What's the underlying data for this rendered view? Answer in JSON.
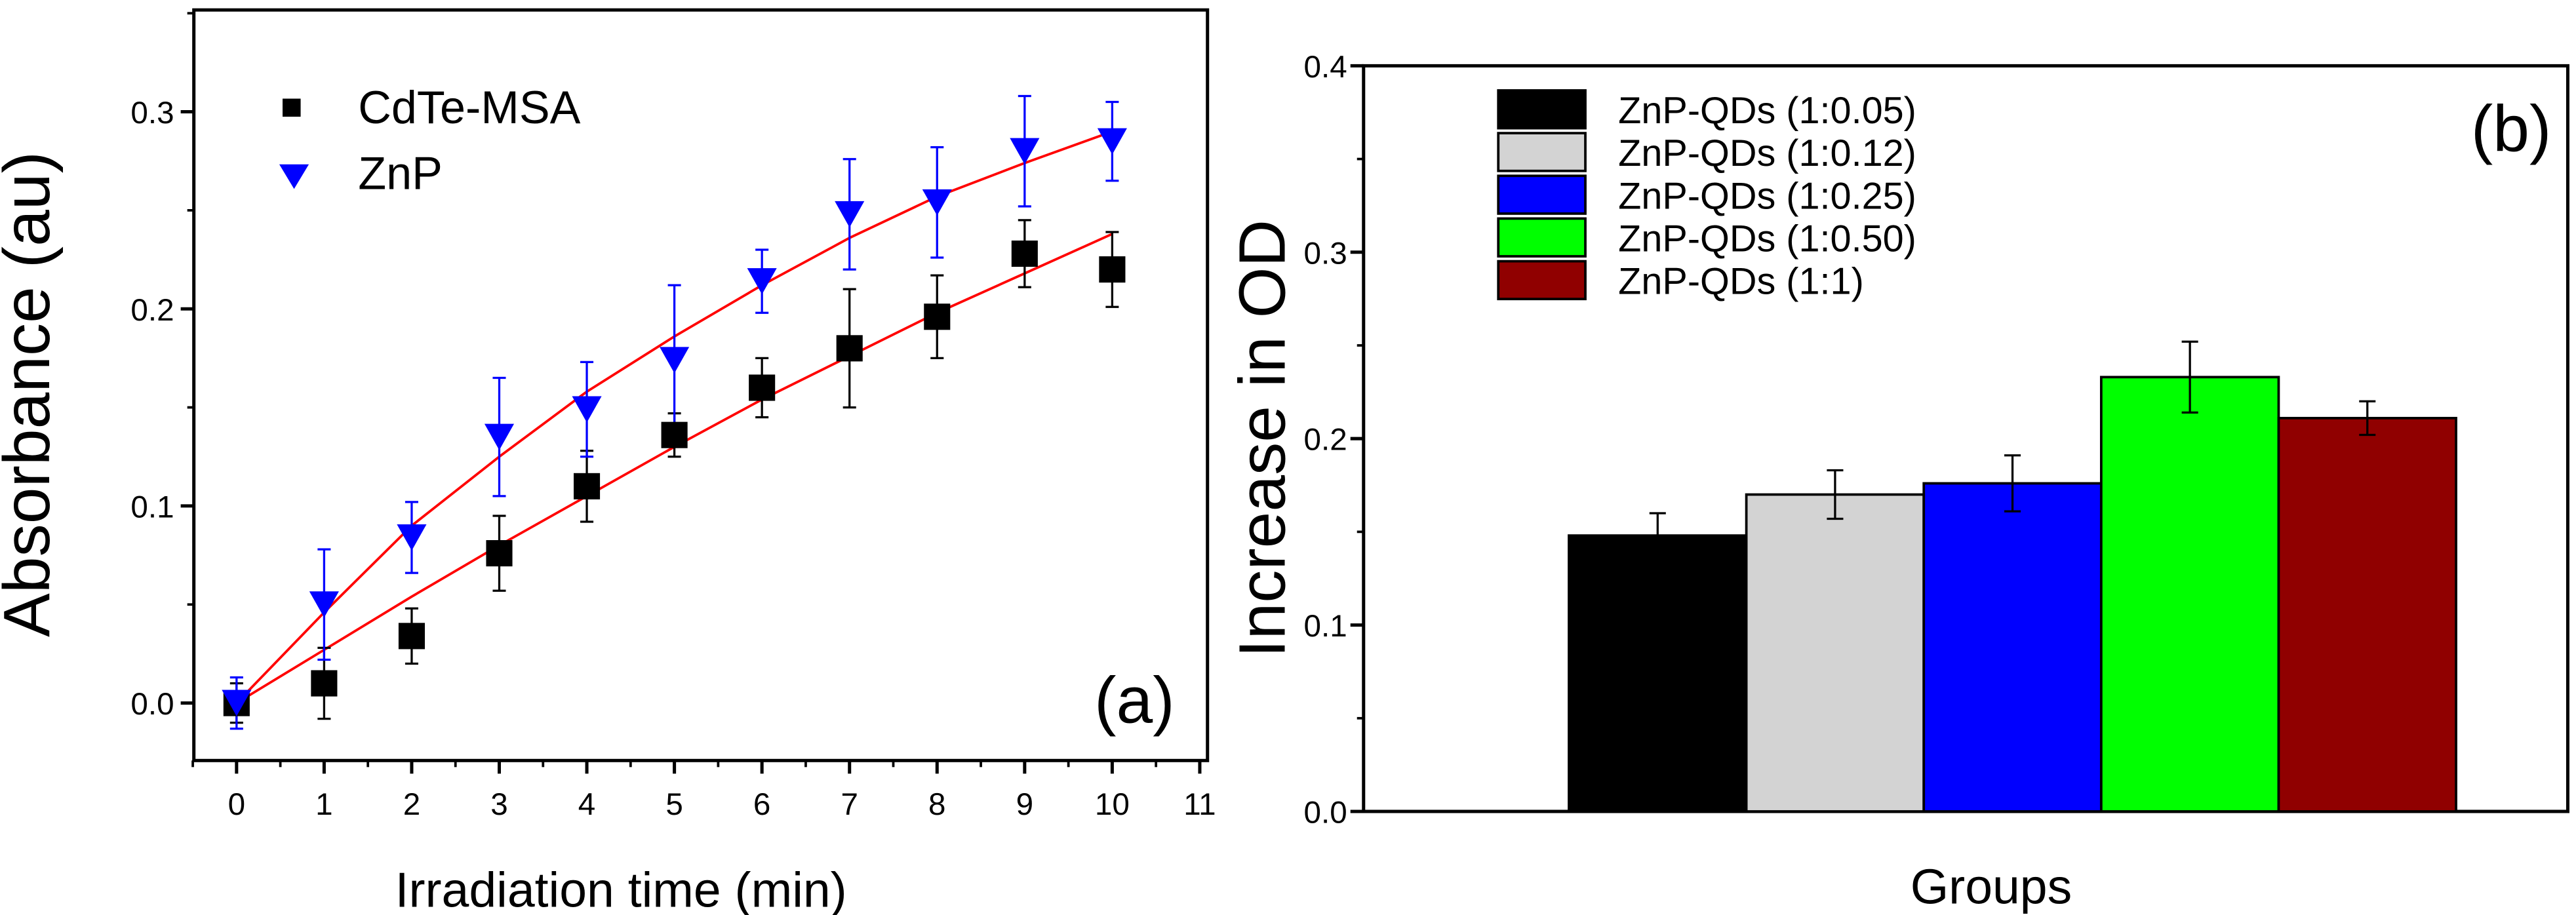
{
  "chart_data": [
    {
      "type": "scatter",
      "panel_label": "(a)",
      "xlabel": "Irradiation time (min)",
      "ylabel": "Absorbance (au)",
      "xlim": [
        -0.5,
        11
      ],
      "ylim": [
        -0.02,
        0.35
      ],
      "xticks": [
        0,
        1,
        2,
        3,
        4,
        5,
        6,
        7,
        8,
        9,
        10,
        11
      ],
      "xtick_labels": [
        "0",
        "1",
        "2",
        "3",
        "4",
        "5",
        "6",
        "7",
        "8",
        "9",
        "10",
        "11"
      ],
      "yticks": [
        0.0,
        0.1,
        0.2,
        0.3
      ],
      "ytick_labels": [
        "0.0",
        "0.1",
        "0.2",
        "0.3"
      ],
      "legend_position": "top-left",
      "series": [
        {
          "name": "CdTe-MSA",
          "marker": "square",
          "color": "#000000",
          "x": [
            0,
            1,
            2,
            3,
            4,
            5,
            6,
            7,
            8,
            9,
            10
          ],
          "y": [
            0.0,
            0.01,
            0.034,
            0.076,
            0.11,
            0.136,
            0.16,
            0.18,
            0.196,
            0.228,
            0.22
          ],
          "yerr": [
            0.01,
            0.018,
            0.014,
            0.019,
            0.018,
            0.011,
            0.015,
            0.03,
            0.021,
            0.017,
            0.019
          ],
          "fit": [
            0,
            0.027,
            0.054,
            0.08,
            0.105,
            0.13,
            0.154,
            0.176,
            0.198,
            0.218,
            0.238
          ]
        },
        {
          "name": "ZnP",
          "marker": "triangle-down",
          "color": "#0000ff",
          "x": [
            0,
            1,
            2,
            3,
            4,
            5,
            6,
            7,
            8,
            9,
            10
          ],
          "y": [
            0.0,
            0.05,
            0.084,
            0.135,
            0.149,
            0.174,
            0.214,
            0.248,
            0.254,
            0.28,
            0.285
          ],
          "yerr": [
            0.013,
            0.028,
            0.018,
            0.03,
            0.024,
            0.038,
            0.016,
            0.028,
            0.028,
            0.028,
            0.02
          ],
          "fit": [
            0,
            0.046,
            0.09,
            0.125,
            0.158,
            0.186,
            0.212,
            0.236,
            0.257,
            0.274,
            0.29
          ]
        }
      ],
      "fit_color": "#ff0000"
    },
    {
      "type": "bar",
      "panel_label": "(b)",
      "xlabel": "Groups",
      "ylabel": "Increase in OD",
      "ylim": [
        0,
        0.4
      ],
      "yticks": [
        0.0,
        0.1,
        0.2,
        0.3,
        0.4
      ],
      "ytick_labels": [
        "0.0",
        "0.1",
        "0.2",
        "0.3",
        "0.4"
      ],
      "legend_position": "top-left",
      "categories": [
        "ZnP-QDs (1:0.05)",
        "ZnP-QDs (1:0.12)",
        "ZnP-QDs (1:0.25)",
        "ZnP-QDs (1:0.50)",
        "ZnP-QDs (1:1)"
      ],
      "values": [
        0.148,
        0.17,
        0.176,
        0.233,
        0.211
      ],
      "yerr": [
        0.012,
        0.013,
        0.015,
        0.019,
        0.009
      ],
      "colors": [
        "#000000",
        "#d3d3d3",
        "#0000ff",
        "#00ff00",
        "#900000"
      ]
    }
  ]
}
